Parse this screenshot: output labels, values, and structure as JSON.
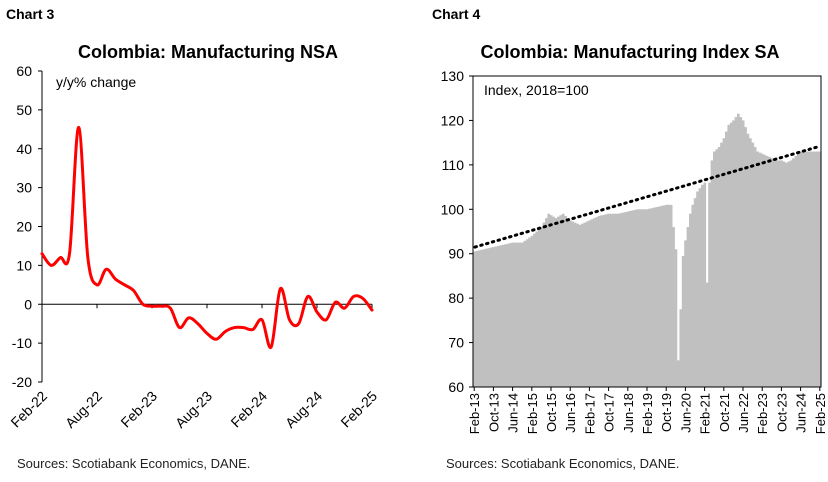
{
  "chart_data": [
    {
      "id": "chart3",
      "type": "line",
      "label": "Chart 3",
      "title": "Colombia: Manufacturing NSA",
      "ylabel": "y/y% change",
      "ylim": [
        -20,
        60
      ],
      "yticks": [
        -20,
        -10,
        0,
        10,
        20,
        30,
        40,
        50,
        60
      ],
      "xticks": [
        "Feb-22",
        "Aug-22",
        "Feb-23",
        "Aug-23",
        "Feb-24",
        "Aug-24",
        "Feb-25"
      ],
      "grid": false,
      "color": "#ff0000",
      "series": [
        {
          "x": [
            "Feb-22",
            "Mar-22",
            "Apr-22",
            "May-22",
            "Jun-22",
            "Jul-22",
            "Aug-22",
            "Sep-22",
            "Oct-22",
            "Nov-22",
            "Dec-22",
            "Jan-23",
            "Feb-23",
            "Mar-23",
            "Apr-23",
            "May-23",
            "Jun-23",
            "Jul-23",
            "Aug-23",
            "Sep-23",
            "Oct-23",
            "Nov-23",
            "Dec-23",
            "Jan-24",
            "Feb-24",
            "Mar-24",
            "Apr-24",
            "May-24",
            "Jun-24",
            "Jul-24",
            "Aug-24",
            "Sep-24",
            "Oct-24",
            "Nov-24",
            "Dec-24",
            "Jan-25",
            "Feb-25"
          ],
          "values": [
            13,
            10,
            12,
            13,
            45.5,
            12,
            5,
            9,
            6.5,
            5,
            3.5,
            0,
            -0.5,
            -0.5,
            -1,
            -6,
            -3.5,
            -5,
            -7.5,
            -9,
            -7,
            -6,
            -6,
            -6.5,
            -4,
            -11,
            4,
            -4,
            -5,
            2,
            -2,
            -4,
            0.5,
            -1,
            2,
            1.5,
            -1.5
          ]
        }
      ],
      "source": "Sources: Scotiabank Economics, DANE."
    },
    {
      "id": "chart4",
      "type": "bar",
      "label": "Chart 4",
      "title": "Colombia: Manufacturing Index SA",
      "ylabel": "Index, 2018=100",
      "ylim": [
        60,
        130
      ],
      "yticks": [
        60,
        70,
        80,
        90,
        100,
        110,
        120,
        130
      ],
      "xticks": [
        "Feb-13",
        "Oct-13",
        "Jun-14",
        "Feb-15",
        "Oct-15",
        "Jun-16",
        "Feb-17",
        "Oct-17",
        "Jun-18",
        "Feb-19",
        "Oct-19",
        "Jun-20",
        "Feb-21",
        "Oct-21",
        "Jun-22",
        "Feb-23",
        "Oct-23",
        "Jun-24",
        "Feb-25"
      ],
      "grid": false,
      "bar_color": "#c0c0c0",
      "trend": {
        "name": "trend",
        "start": 91.5,
        "end": 114,
        "style": "dotted",
        "color": "#000000"
      },
      "anchors": [
        {
          "m": 0,
          "v": 90.5
        },
        {
          "m": 4,
          "v": 91
        },
        {
          "m": 8,
          "v": 91.5
        },
        {
          "m": 12,
          "v": 92
        },
        {
          "m": 16,
          "v": 92.5
        },
        {
          "m": 20,
          "v": 92.5
        },
        {
          "m": 24,
          "v": 94
        },
        {
          "m": 28,
          "v": 96
        },
        {
          "m": 31,
          "v": 99
        },
        {
          "m": 34,
          "v": 98
        },
        {
          "m": 37,
          "v": 99
        },
        {
          "m": 40,
          "v": 97.5
        },
        {
          "m": 44,
          "v": 96.5
        },
        {
          "m": 48,
          "v": 97.5
        },
        {
          "m": 52,
          "v": 98.5
        },
        {
          "m": 56,
          "v": 99
        },
        {
          "m": 60,
          "v": 99
        },
        {
          "m": 64,
          "v": 99.5
        },
        {
          "m": 68,
          "v": 100
        },
        {
          "m": 72,
          "v": 100
        },
        {
          "m": 76,
          "v": 100.5
        },
        {
          "m": 80,
          "v": 101
        },
        {
          "m": 82,
          "v": 101
        },
        {
          "m": 84,
          "v": 91
        },
        {
          "m": 85,
          "v": 66
        },
        {
          "m": 86,
          "v": 77.5
        },
        {
          "m": 87,
          "v": 89.5
        },
        {
          "m": 88,
          "v": 93
        },
        {
          "m": 89,
          "v": 96
        },
        {
          "m": 90,
          "v": 99
        },
        {
          "m": 91,
          "v": 101
        },
        {
          "m": 93,
          "v": 104
        },
        {
          "m": 95,
          "v": 105.5
        },
        {
          "m": 96,
          "v": 106
        },
        {
          "m": 97,
          "v": 83.5
        },
        {
          "m": 98,
          "v": 106
        },
        {
          "m": 99,
          "v": 111
        },
        {
          "m": 100,
          "v": 113
        },
        {
          "m": 102,
          "v": 114
        },
        {
          "m": 104,
          "v": 116
        },
        {
          "m": 106,
          "v": 119
        },
        {
          "m": 108,
          "v": 120
        },
        {
          "m": 110,
          "v": 121.5
        },
        {
          "m": 112,
          "v": 120
        },
        {
          "m": 114,
          "v": 117
        },
        {
          "m": 116,
          "v": 115
        },
        {
          "m": 118,
          "v": 113
        },
        {
          "m": 120,
          "v": 112.5
        },
        {
          "m": 122,
          "v": 112
        },
        {
          "m": 124,
          "v": 111.5
        },
        {
          "m": 126,
          "v": 111
        },
        {
          "m": 128,
          "v": 111
        },
        {
          "m": 130,
          "v": 110.5
        },
        {
          "m": 132,
          "v": 111
        },
        {
          "m": 134,
          "v": 112
        },
        {
          "m": 136,
          "v": 113
        },
        {
          "m": 144,
          "v": 113
        }
      ],
      "source": "Sources: Scotiabank Economics, DANE."
    }
  ]
}
